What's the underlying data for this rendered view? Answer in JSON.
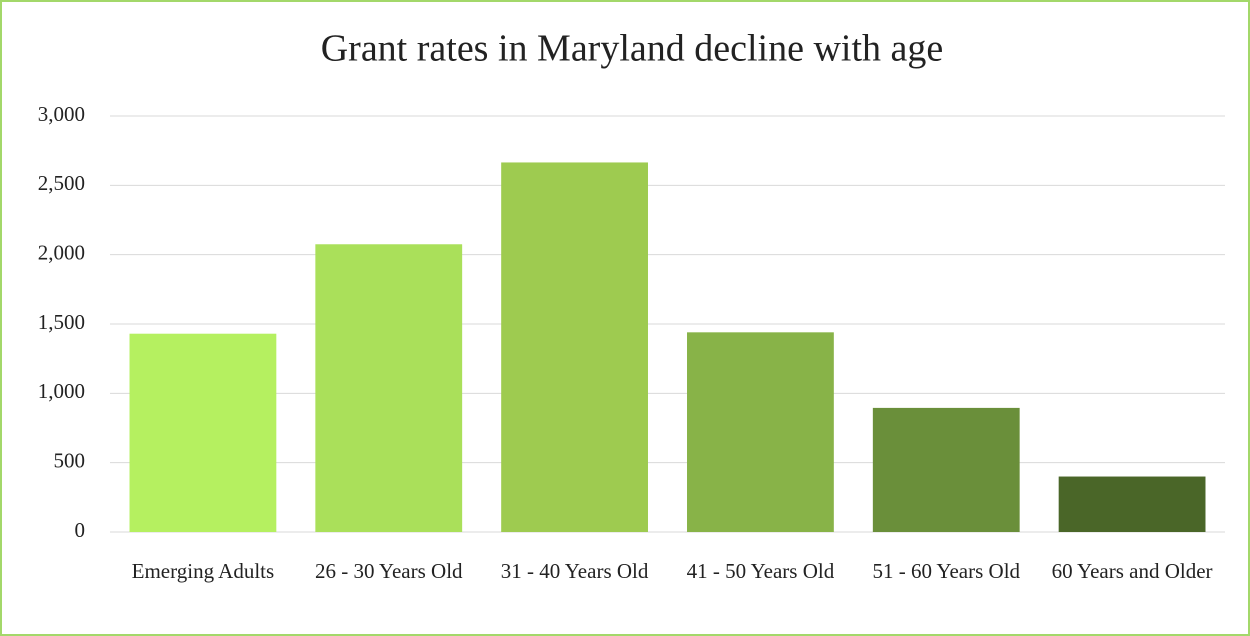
{
  "chart_data": {
    "type": "bar",
    "title": "Grant rates in Maryland decline with age",
    "categories": [
      "Emerging Adults",
      "26 - 30 Years Old",
      "31 - 40 Years Old",
      "41 - 50 Years Old",
      "51 - 60 Years Old",
      "60 Years and Older"
    ],
    "values": [
      1430,
      2075,
      2665,
      1440,
      895,
      400
    ],
    "colors": [
      "#b5f060",
      "#aae05a",
      "#9ecb50",
      "#88b348",
      "#6a8f3a",
      "#4a6628"
    ],
    "ylim": [
      0,
      3000
    ],
    "yticks": [
      0,
      500,
      {
        "value": 1000,
        "label": "1,000"
      },
      {
        "value": 1500,
        "label": "1,500"
      },
      {
        "value": 2000,
        "label": "2,000"
      },
      {
        "value": 2500,
        "label": "2,500"
      },
      {
        "value": 3000,
        "label": "3,000"
      }
    ],
    "grid": true
  }
}
